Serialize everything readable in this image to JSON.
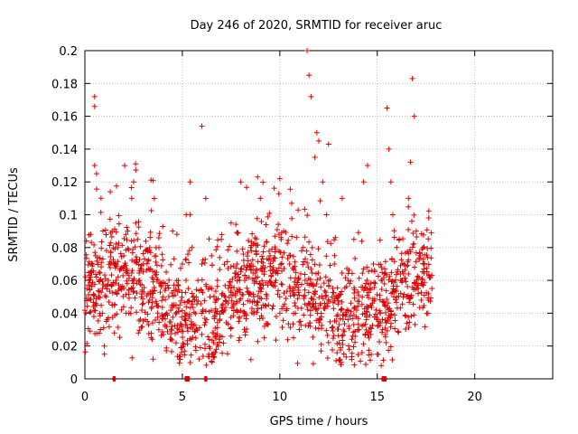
{
  "chart_data": {
    "type": "scatter",
    "title": "Day 246 of 2020, SRMTID for receiver aruc",
    "xlabel": "GPS time / hours",
    "ylabel": "SRMTID / TECUs",
    "xlim": [
      0,
      24
    ],
    "ylim": [
      0,
      0.2
    ],
    "xticks": [
      0,
      5,
      10,
      15,
      20
    ],
    "yticks": [
      0,
      0.02,
      0.04,
      0.06,
      0.08,
      0.1,
      0.12,
      0.14,
      0.16,
      0.18,
      0.2
    ],
    "grid": true,
    "marker": "+",
    "color": "#e00000",
    "data_extent_hours": [
      0,
      17.8
    ],
    "zero_points_x": [
      1.5,
      5.2,
      5.3,
      6.2,
      15.3,
      15.4
    ],
    "series": [
      {
        "name": "SRMTID",
        "x": [
          0.1,
          0.2,
          0.3,
          0.4,
          0.5,
          0.5,
          0.5,
          0.6,
          0.6,
          0.6,
          0.7,
          0.8,
          0.9,
          1.0,
          1.0,
          1.1,
          1.1,
          1.2,
          1.3,
          1.4,
          1.4,
          1.5,
          1.6,
          1.7,
          1.8,
          2.0,
          2.2,
          2.4,
          2.5,
          2.6,
          2.7,
          2.8,
          2.9,
          3.0,
          3.2,
          3.4,
          3.5,
          3.6,
          3.8,
          4.0,
          4.2,
          4.5,
          4.8,
          5.0,
          5.2,
          5.4,
          5.5,
          5.6,
          5.8,
          6.0,
          6.0,
          6.2,
          6.5,
          6.8,
          7.0,
          7.2,
          7.5,
          7.8,
          8.0,
          8.2,
          8.5,
          8.8,
          9.0,
          9.2,
          9.5,
          9.8,
          10.0,
          10.0,
          10.2,
          10.5,
          10.8,
          11.0,
          11.2,
          11.3,
          11.4,
          11.5,
          11.6,
          11.8,
          11.9,
          12.0,
          12.2,
          12.4,
          12.5,
          12.8,
          13.0,
          13.2,
          13.5,
          13.8,
          14.0,
          14.3,
          14.5,
          14.8,
          15.0,
          15.2,
          15.4,
          15.5,
          15.6,
          15.7,
          15.8,
          16.0,
          16.2,
          16.5,
          16.6,
          16.7,
          16.8,
          16.9,
          17.0,
          17.2,
          17.4,
          17.6,
          17.8
        ],
        "y": [
          0.055,
          0.06,
          0.088,
          0.07,
          0.172,
          0.166,
          0.13,
          0.125,
          0.062,
          0.045,
          0.05,
          0.03,
          0.04,
          0.02,
          0.015,
          0.035,
          0.05,
          0.06,
          0.114,
          0.09,
          0.045,
          0.07,
          0.06,
          0.08,
          0.055,
          0.075,
          0.09,
          0.11,
          0.12,
          0.131,
          0.085,
          0.06,
          0.05,
          0.07,
          0.035,
          0.025,
          0.012,
          0.065,
          0.08,
          0.05,
          0.04,
          0.09,
          0.06,
          0.07,
          0.1,
          0.12,
          0.08,
          0.05,
          0.06,
          0.154,
          0.07,
          0.11,
          0.075,
          0.06,
          0.085,
          0.05,
          0.095,
          0.07,
          0.12,
          0.06,
          0.08,
          0.045,
          0.11,
          0.025,
          0.075,
          0.06,
          0.122,
          0.05,
          0.09,
          0.07,
          0.04,
          0.03,
          0.08,
          0.06,
          0.2,
          0.185,
          0.172,
          0.135,
          0.15,
          0.145,
          0.12,
          0.1,
          0.143,
          0.07,
          0.05,
          0.11,
          0.06,
          0.085,
          0.03,
          0.12,
          0.13,
          0.07,
          0.015,
          0.06,
          0.045,
          0.165,
          0.14,
          0.12,
          0.1,
          0.08,
          0.06,
          0.05,
          0.11,
          0.132,
          0.183,
          0.16,
          0.09,
          0.075,
          0.07,
          0.04,
          0.055
        ]
      }
    ]
  }
}
